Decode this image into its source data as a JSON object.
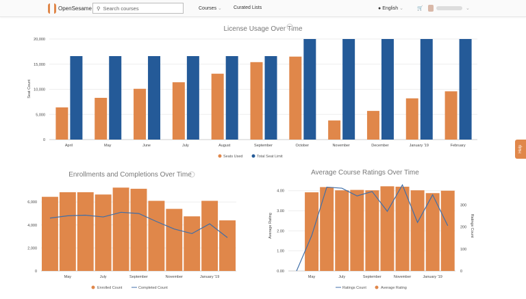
{
  "nav": {
    "brand": "OpenSesame",
    "search_placeholder": "Search courses",
    "courses": "Courses",
    "curated": "Curated Lists",
    "language": "English",
    "help": "Help"
  },
  "colors": {
    "orange": "#e0874a",
    "blue": "#245a98"
  },
  "chart_data": [
    {
      "type": "bar",
      "title": "License Usage Over Time",
      "ylabel": "Seat Count",
      "ylim": [
        0,
        20000
      ],
      "yticks": [
        "0",
        "5,000",
        "10,000",
        "15,000",
        "20,000"
      ],
      "categories": [
        "April",
        "May",
        "June",
        "July",
        "August",
        "September",
        "October",
        "November",
        "December",
        "January '19",
        "February"
      ],
      "series": [
        {
          "name": "Seats Used",
          "values": [
            6400,
            8300,
            10100,
            11400,
            13100,
            15400,
            16500,
            3800,
            5700,
            8200,
            9600
          ]
        },
        {
          "name": "Total Seat Limit",
          "values": [
            16600,
            16600,
            16600,
            16600,
            16600,
            16600,
            20000,
            20000,
            20000,
            20000,
            20000
          ]
        }
      ]
    },
    {
      "type": "bar",
      "title": "Enrollments and Completions Over Time",
      "ylim": [
        0,
        7500
      ],
      "yticks": [
        "0",
        "2,000",
        "4,000",
        "6,000"
      ],
      "categories": [
        "April",
        "May",
        "June",
        "July",
        "August",
        "September",
        "October",
        "November",
        "December",
        "January '19",
        "February"
      ],
      "xticks": [
        "May",
        "July",
        "September",
        "November",
        "January '19"
      ],
      "series": [
        {
          "name": "Enrolled Count",
          "values": [
            6450,
            6850,
            6850,
            6650,
            7250,
            7150,
            6100,
            5400,
            4750,
            6100,
            4400
          ]
        },
        {
          "name": "Completed Count",
          "values": [
            4600,
            4800,
            4850,
            4700,
            5100,
            5000,
            4300,
            3650,
            3250,
            4100,
            2900
          ]
        }
      ]
    },
    {
      "type": "bar",
      "title": "Average Course Ratings Over Time",
      "ylabel": "Average Rating",
      "y2label": "Ratings Count",
      "ylim": [
        0,
        4.4
      ],
      "y2lim": [
        0,
        400
      ],
      "yticks": [
        "0.00",
        "1.00",
        "2.00",
        "3.00",
        "4.00"
      ],
      "y2ticks": [
        "0",
        "100",
        "200",
        "300"
      ],
      "categories": [
        "April",
        "May",
        "June",
        "July",
        "August",
        "September",
        "October",
        "November",
        "December",
        "January '19",
        "February"
      ],
      "xticks": [
        "May",
        "July",
        "September",
        "November",
        "January '19"
      ],
      "series": [
        {
          "name": "Ratings Count",
          "values": [
            0,
            160,
            380,
            375,
            340,
            360,
            270,
            390,
            220,
            345,
            205
          ]
        },
        {
          "name": "Average Rating",
          "values": [
            null,
            3.92,
            4.18,
            4.02,
            4.04,
            4.02,
            4.22,
            4.2,
            4.02,
            3.88,
            4.0
          ]
        }
      ]
    }
  ]
}
